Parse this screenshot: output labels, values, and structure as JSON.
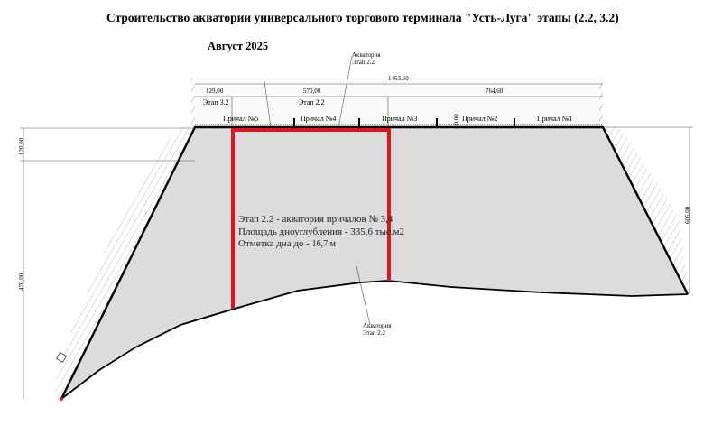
{
  "title": "Строительство акватории универсального торгового терминала \"Усть-Луга\"  этапы  (2.2, 3.2)",
  "date": "Август 2025",
  "callouts": [
    {
      "line1": "Акватория",
      "line2": "Этап 2.2"
    },
    {
      "line1": "Акватория",
      "line2": "Этап 2.2"
    }
  ],
  "dimensions": {
    "total_length": "1463,60",
    "stage32_length": "129,00",
    "stage22_length": "570,00",
    "remaining_length": "764,60",
    "left_top": "120,00",
    "left_height": "470,00",
    "right_height": "605,00",
    "berth_offset": "10,00"
  },
  "stages": {
    "stage32": "Этап 3.2",
    "stage22": "Этап 2.2"
  },
  "berths": [
    "Причал №5",
    "Причал №4",
    "Причал №3",
    "Причал №2",
    "Причал №1"
  ],
  "info": {
    "line1": "Этап 2.2 - акватория причалов № 3,4",
    "line2_label": "Площадь дноуглубления -",
    "line2_value": "335,6 тыс.м2",
    "line3_label": "Отметка дна до -",
    "line3_value": "16,7 м"
  },
  "colors": {
    "highlight": "#e0141c",
    "water": "#dcdcdc",
    "outline": "#000000"
  }
}
